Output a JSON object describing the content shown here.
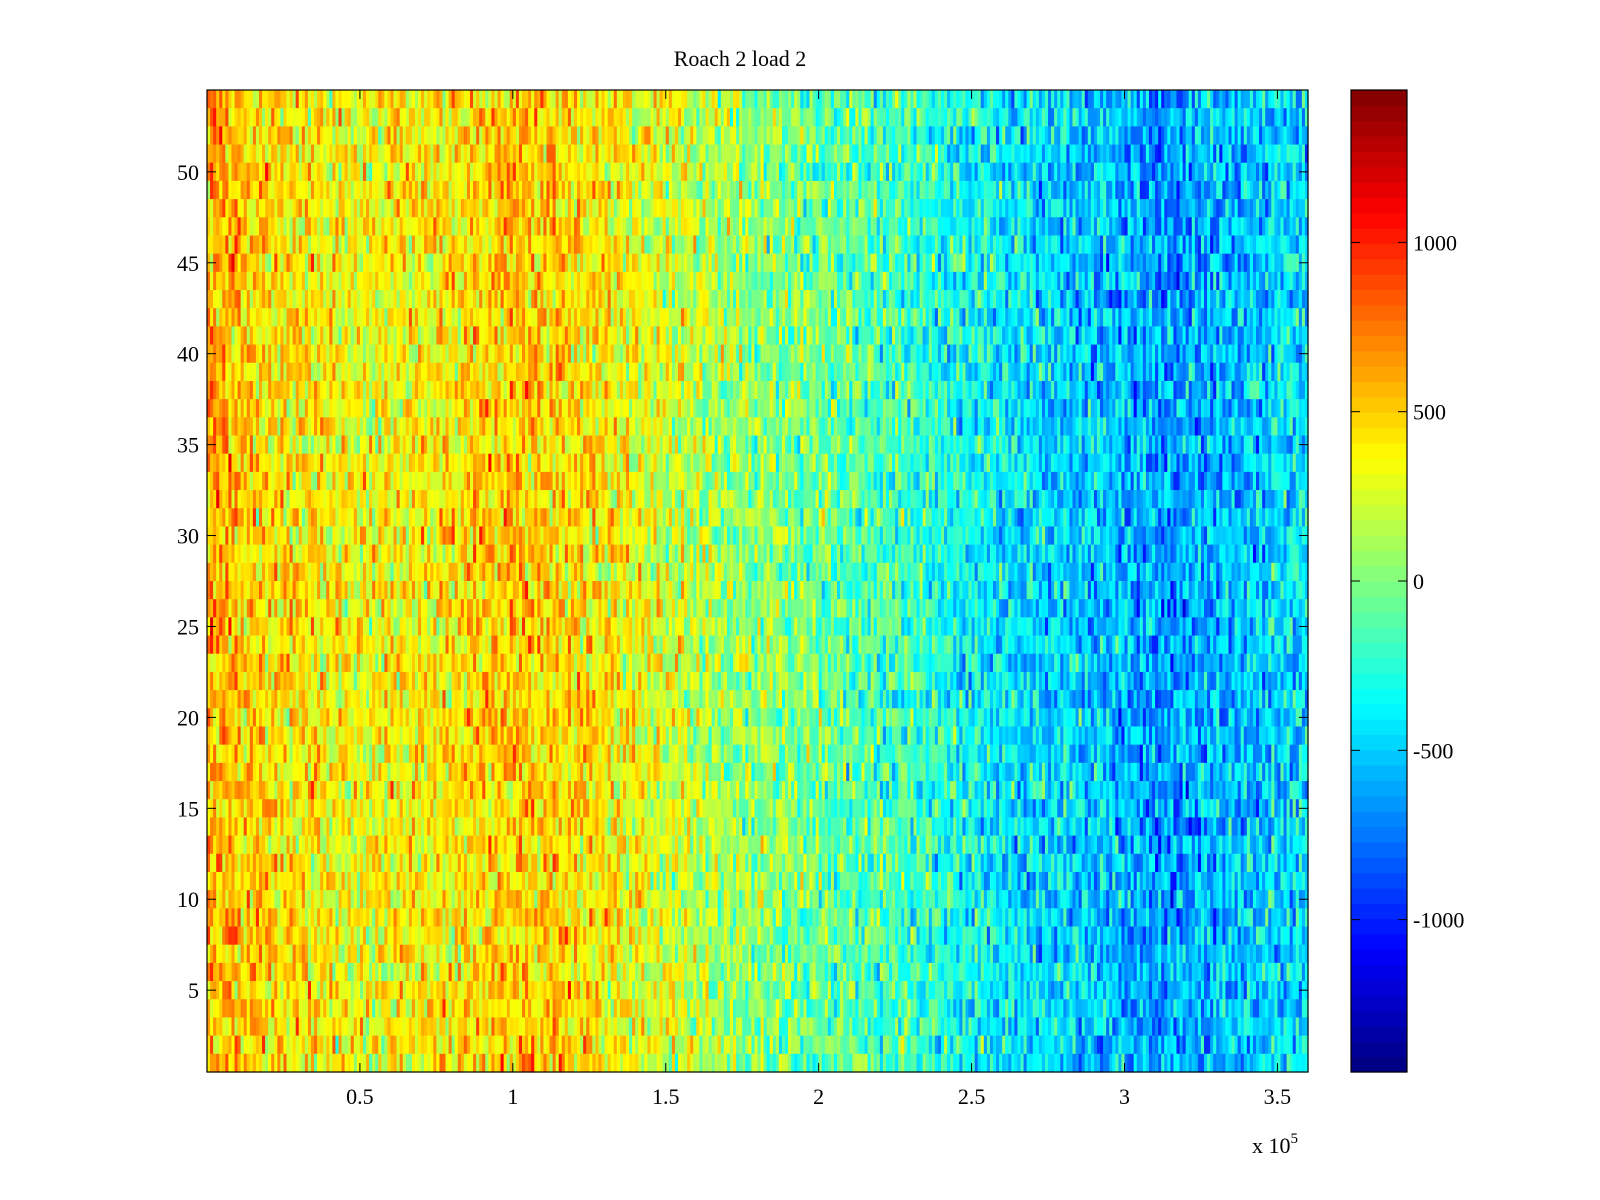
{
  "chart_data": {
    "type": "heatmap",
    "title": "Roach 2 load 2",
    "xlabel": "",
    "ylabel": "",
    "x_multiplier_label": "x 10",
    "x_multiplier_exponent": "5",
    "xlim": [
      0,
      3.6
    ],
    "ylim": [
      0.5,
      54.5
    ],
    "x_ticks": [
      0.5,
      1,
      1.5,
      2,
      2.5,
      3,
      3.5
    ],
    "x_tick_labels": [
      "0.5",
      "1",
      "1.5",
      "2",
      "2.5",
      "3",
      "3.5"
    ],
    "y_ticks": [
      5,
      10,
      15,
      20,
      25,
      30,
      35,
      40,
      45,
      50
    ],
    "y_tick_labels": [
      "5",
      "10",
      "15",
      "20",
      "25",
      "30",
      "35",
      "40",
      "45",
      "50"
    ],
    "grid": false,
    "colormap": "jet",
    "colorbar": {
      "position": "right",
      "clim": [
        -1450,
        1450
      ],
      "ticks": [
        -1000,
        -500,
        0,
        500,
        1000
      ],
      "tick_labels": [
        "-1000",
        "-500",
        "0",
        "500",
        "1000"
      ]
    },
    "rows": 54,
    "trend_profile": {
      "x": [
        0,
        0.2,
        0.5,
        0.8,
        1.0,
        1.2,
        1.5,
        1.7,
        2.0,
        2.3,
        2.6,
        2.9,
        3.15,
        3.3,
        3.6
      ],
      "value": [
        620,
        450,
        330,
        420,
        520,
        460,
        250,
        100,
        -50,
        -200,
        -400,
        -520,
        -650,
        -560,
        -420
      ]
    }
  }
}
